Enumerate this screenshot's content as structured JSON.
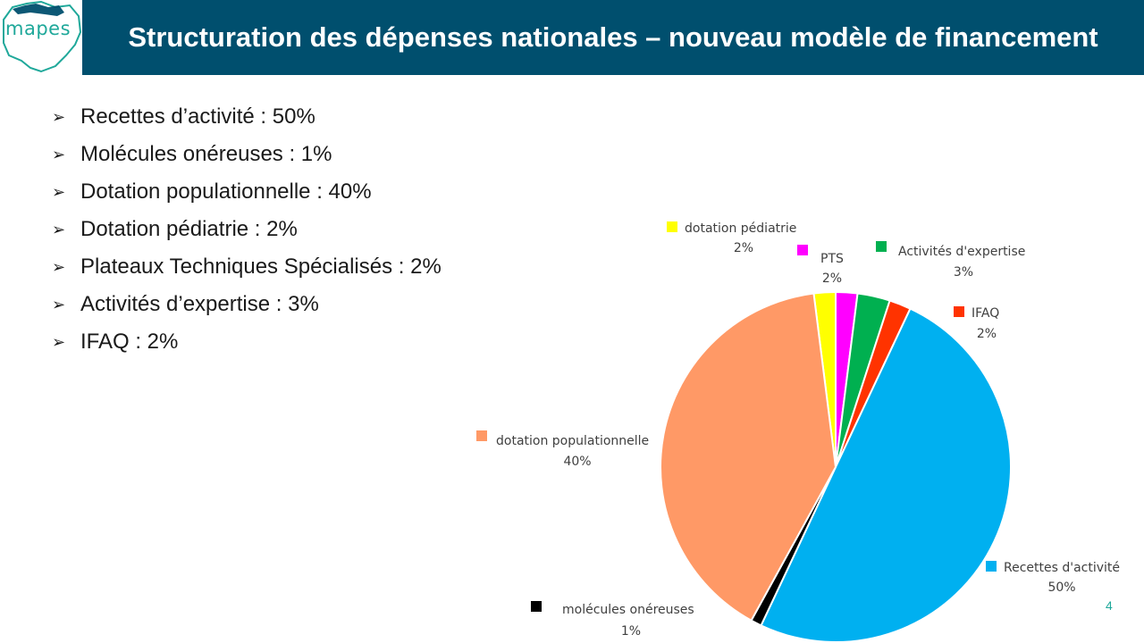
{
  "logo": {
    "text": "mapes"
  },
  "title": "Structuration des dépenses nationales – nouveau modèle de financement",
  "bullets": [
    "Recettes d’activité : 50%",
    "Molécules onéreuses : 1%",
    "Dotation populationnelle : 40%",
    "Dotation pédiatrie : 2%",
    "Plateaux Techniques Spécialisés : 2%",
    "Activités d’expertise : 3%",
    "IFAQ : 2%"
  ],
  "page_number": "4",
  "chart_data": {
    "type": "pie",
    "title": "",
    "slices": [
      {
        "label": "dotation pédiatrie",
        "value": 2,
        "percent_label": "2%",
        "color": "#ffff00"
      },
      {
        "label": "PTS",
        "value": 2,
        "percent_label": "2%",
        "color": "#ff00ff"
      },
      {
        "label": "Activités d'expertise",
        "value": 3,
        "percent_label": "3%",
        "color": "#00b050"
      },
      {
        "label": "IFAQ",
        "value": 2,
        "percent_label": "2%",
        "color": "#ff3300"
      },
      {
        "label": "Recettes d'activité",
        "value": 50,
        "percent_label": "50%",
        "color": "#00b0f0"
      },
      {
        "label": "molécules onéreuses",
        "value": 1,
        "percent_label": "1%",
        "color": "#000000"
      },
      {
        "label": "dotation populationnelle",
        "value": 40,
        "percent_label": "40%",
        "color": "#ff9966"
      }
    ]
  }
}
